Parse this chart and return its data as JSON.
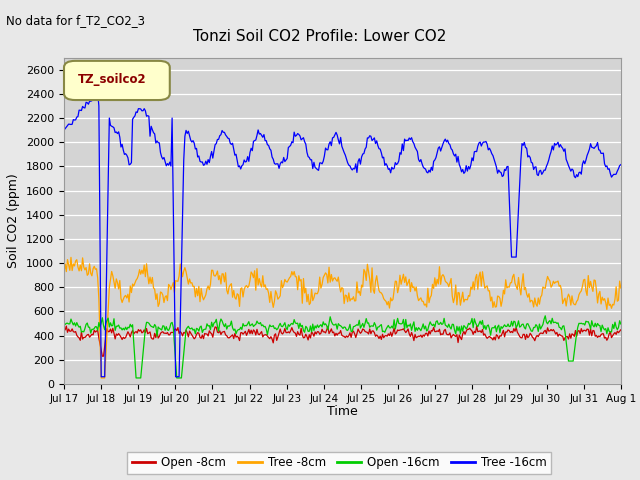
{
  "title": "Tonzi Soil CO2 Profile: Lower CO2",
  "top_left_text": "No data for f_T2_CO2_3",
  "legend_box_text": "TZ_soilco2",
  "ylabel": "Soil CO2 (ppm)",
  "xlabel": "Time",
  "ylim": [
    0,
    2700
  ],
  "yticks": [
    0,
    200,
    400,
    600,
    800,
    1000,
    1200,
    1400,
    1600,
    1800,
    2000,
    2200,
    2400,
    2600
  ],
  "xtick_labels": [
    "Jul 17",
    "Jul 18",
    "Jul 19",
    "Jul 20",
    "Jul 21",
    "Jul 22",
    "Jul 23",
    "Jul 24",
    "Jul 25",
    "Jul 26",
    "Jul 27",
    "Jul 28",
    "Jul 29",
    "Jul 30",
    "Jul 31",
    "Aug 1"
  ],
  "line_colors": {
    "open_8cm": "#cc0000",
    "tree_8cm": "#ffa500",
    "open_16cm": "#00cc00",
    "tree_16cm": "#0000ff"
  },
  "legend_labels": [
    "Open -8cm",
    "Tree -8cm",
    "Open -16cm",
    "Tree -16cm"
  ],
  "fig_facecolor": "#e8e8e8",
  "plot_bg_color": "#d4d4d4",
  "n_points": 480
}
